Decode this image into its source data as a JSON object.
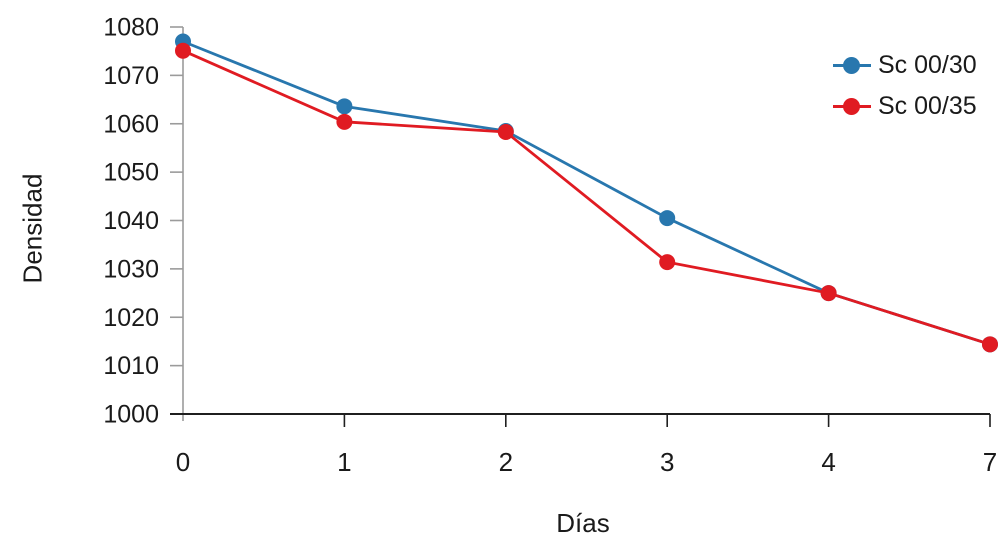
{
  "chart_data": {
    "type": "line",
    "title": "",
    "xlabel": "Días",
    "ylabel": "Densidad",
    "categories": [
      "0",
      "1",
      "2",
      "3",
      "4",
      "7"
    ],
    "series": [
      {
        "name": "Sc 00/30",
        "color": "#2877AE",
        "values": [
          1077.0,
          1063.6,
          1058.5,
          1040.5,
          1025.0,
          1014.4
        ]
      },
      {
        "name": "Sc 00/35",
        "color": "#E01B22",
        "values": [
          1075.1,
          1060.4,
          1058.3,
          1031.4,
          1025.0,
          1014.4
        ]
      }
    ],
    "ylim": [
      1000,
      1080
    ],
    "yticks": [
      1000,
      1010,
      1020,
      1030,
      1040,
      1050,
      1060,
      1070,
      1080
    ],
    "xticks": [
      "0",
      "1",
      "2",
      "3",
      "4",
      "7"
    ],
    "grid": false,
    "legend_position": "top-right",
    "marker": "circle"
  },
  "colors": {
    "background": "#FFFFFF",
    "text": "#1A1A1A",
    "y_axis_line": "#9B9B9B",
    "x_axis_line": "#1F1F1F",
    "series_blue": "#2877AE",
    "series_red": "#E01B22"
  }
}
